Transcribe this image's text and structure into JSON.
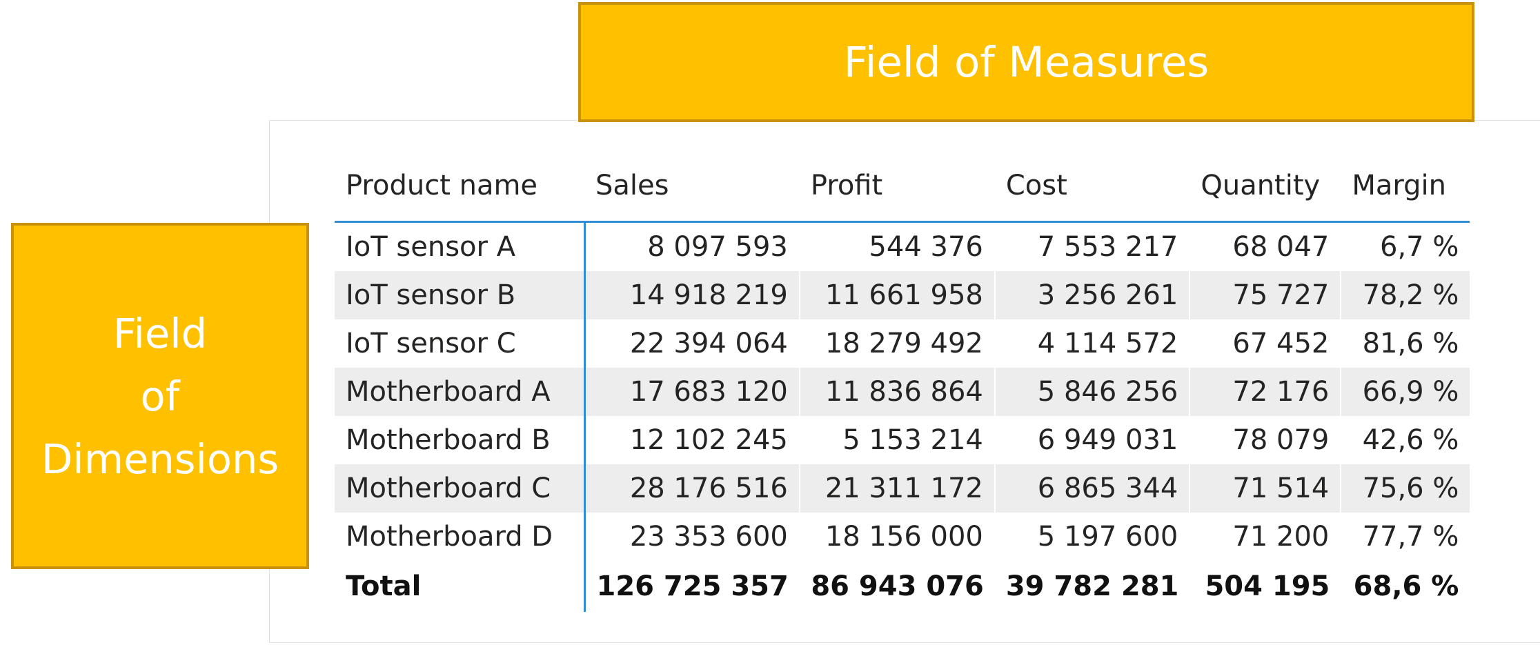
{
  "callouts": {
    "measures": "Field of Measures",
    "dimensions": [
      "Field",
      "of",
      "Dimensions"
    ]
  },
  "table": {
    "headers": [
      "Product name",
      "Sales",
      "Profit",
      "Cost",
      "Quantity",
      "Margin"
    ],
    "rows": [
      [
        "IoT sensor A",
        "8 097 593",
        "544 376",
        "7 553 217",
        "68 047",
        "6,7 %"
      ],
      [
        "IoT sensor B",
        "14 918 219",
        "11 661 958",
        "3 256 261",
        "75 727",
        "78,2 %"
      ],
      [
        "IoT sensor C",
        "22 394 064",
        "18 279 492",
        "4 114 572",
        "67 452",
        "81,6 %"
      ],
      [
        "Motherboard A",
        "17 683 120",
        "11 836 864",
        "5 846 256",
        "72 176",
        "66,9 %"
      ],
      [
        "Motherboard B",
        "12 102 245",
        "5 153 214",
        "6 949 031",
        "78 079",
        "42,6 %"
      ],
      [
        "Motherboard C",
        "28 176 516",
        "21 311 172",
        "6 865 344",
        "71 514",
        "75,6 %"
      ],
      [
        "Motherboard D",
        "23 353 600",
        "18 156 000",
        "5 197 600",
        "71 200",
        "77,7 %"
      ]
    ],
    "total": [
      "Total",
      "126 725 357",
      "86 943 076",
      "39 782 281",
      "504 195",
      "68,6 %"
    ]
  },
  "colors": {
    "callout_fill": "#FFC000",
    "callout_border": "#C9920E",
    "accent_line": "#2F8DD6",
    "band_row": "#EDEDED"
  }
}
